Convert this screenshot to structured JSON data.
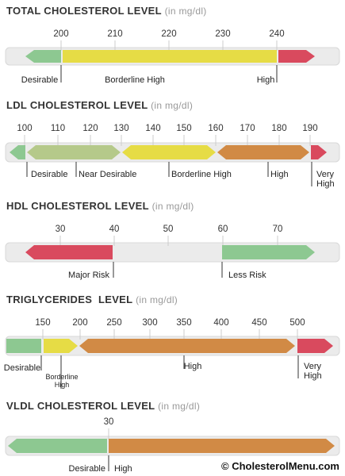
{
  "panels": [
    {
      "title": "TOTAL CHOLESTEROL LEVEL",
      "unit": "(in mg/dl)",
      "ticks": [
        200,
        210,
        220,
        230,
        240
      ],
      "labels": [
        [
          "Desirable"
        ],
        [
          "Borderline High"
        ],
        [
          "High"
        ]
      ]
    },
    {
      "title": "LDL CHOLESTEROL LEVEL",
      "unit": "(in mg/dl)",
      "ticks": [
        100,
        110,
        120,
        130,
        140,
        150,
        160,
        170,
        180,
        190
      ],
      "labels": [
        [
          "Desirable"
        ],
        [
          "Near Desirable"
        ],
        [
          "Borderline High"
        ],
        [
          "High"
        ],
        [
          "Very",
          "High"
        ]
      ]
    },
    {
      "title": "HDL CHOLESTEROL LEVEL",
      "unit": "(in mg/dl)",
      "ticks": [
        30,
        40,
        50,
        60,
        70
      ],
      "labels": [
        [
          "Major Risk"
        ],
        [
          "Less Risk"
        ]
      ]
    },
    {
      "title": "TRIGLYCERIDES  LEVEL",
      "unit": "(in mg/dl)",
      "ticks": [
        150,
        200,
        250,
        300,
        350,
        400,
        450,
        500
      ],
      "labels": [
        [
          "Desirable"
        ],
        [
          "Borderline",
          "High"
        ],
        [
          "High"
        ],
        [
          "Very",
          "High"
        ]
      ]
    },
    {
      "title": "VLDL CHOLESTEROL LEVEL",
      "unit": "(in mg/dl)",
      "ticks": [
        30
      ],
      "labels": [
        [
          "Desirable"
        ],
        [
          "High"
        ]
      ]
    }
  ],
  "credit": "© CholesterolMenu.com"
}
